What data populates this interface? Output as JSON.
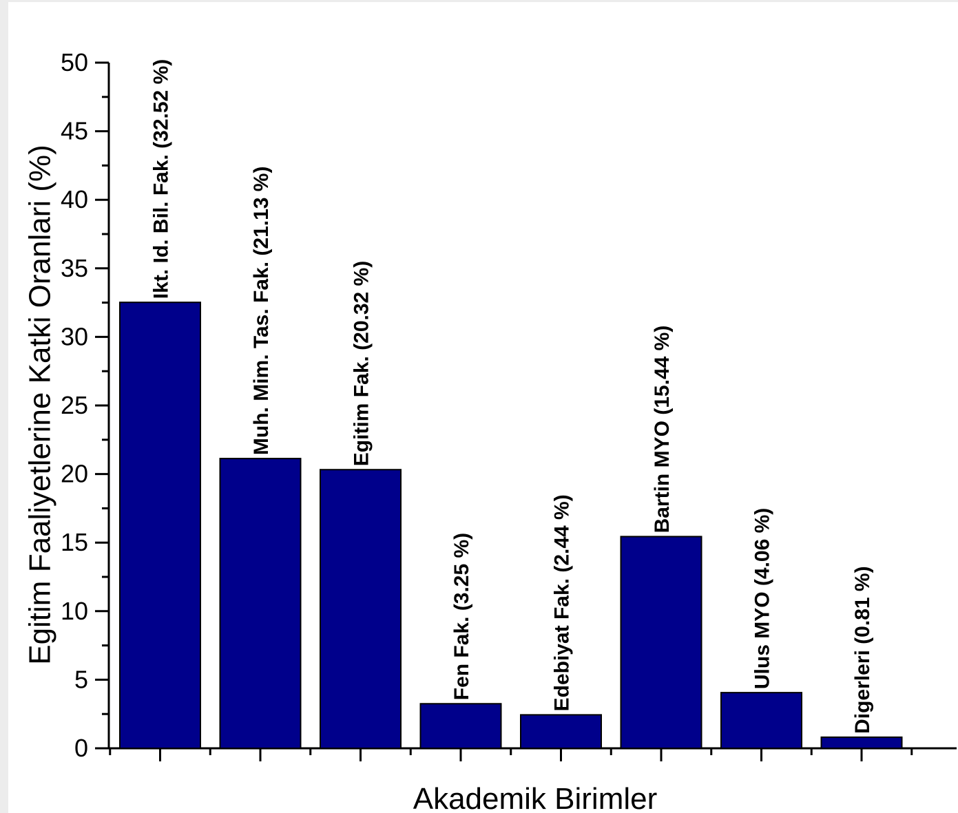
{
  "chart_data": {
    "type": "bar",
    "categories": [
      "Ikt. Id. Bil. Fak. (32.52 %)",
      "Muh. Mim. Tas. Fak. (21.13 %)",
      "Egitim Fak. (20.32 %)",
      "Fen Fak. (3.25 %)",
      "Edebiyat Fak. (2.44 %)",
      "Bartin MYO (15.44 %)",
      "Ulus MYO (4.06 %)",
      "Digerleri (0.81 %)"
    ],
    "values": [
      32.52,
      21.13,
      20.32,
      3.25,
      2.44,
      15.44,
      4.06,
      0.81
    ],
    "xlabel": "Akademik Birimler",
    "ylabel": "Egitim Faaliyetlerine Katki Oranlari (%)",
    "ylim": [
      0,
      50
    ],
    "yticks": [
      "0",
      "5",
      "10",
      "15",
      "20",
      "25",
      "30",
      "35",
      "40",
      "45",
      "50"
    ],
    "bar_color": "#00008b",
    "bar_edge_color": "#000000",
    "grid": false,
    "legend": "none"
  }
}
